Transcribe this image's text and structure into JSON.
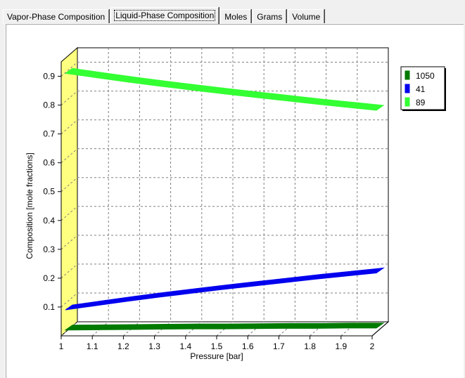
{
  "tabs": [
    {
      "label": "Vapor-Phase Composition",
      "active": false
    },
    {
      "label": "Liquid-Phase Composition",
      "active": true
    },
    {
      "label": "Moles",
      "active": false
    },
    {
      "label": "Grams",
      "active": false
    },
    {
      "label": "Volume",
      "active": false
    }
  ],
  "chart_data": {
    "type": "line",
    "style": "3d-ribbon",
    "title": "",
    "xlabel": "Pressure [bar]",
    "ylabel": "Composition [mole fractions]",
    "xlim": [
      1,
      2
    ],
    "ylim": [
      0,
      0.95
    ],
    "x_ticks": [
      "1",
      "1.1",
      "1.2",
      "1.3",
      "1.4",
      "1.5",
      "1.6",
      "1.7",
      "1.8",
      "1.9",
      "2"
    ],
    "y_ticks": [
      "0.1",
      "0.2",
      "0.3",
      "0.4",
      "0.5",
      "0.6",
      "0.7",
      "0.8",
      "0.9"
    ],
    "grid": true,
    "legend_position": "right",
    "x": [
      1,
      1.1,
      1.2,
      1.3,
      1.4,
      1.5,
      1.6,
      1.7,
      1.8,
      1.9,
      2
    ],
    "series": [
      {
        "name": "1050",
        "color": "#007a00",
        "values": [
          0.02,
          0.021,
          0.022,
          0.023,
          0.024,
          0.024,
          0.025,
          0.026,
          0.026,
          0.027,
          0.027
        ]
      },
      {
        "name": "41",
        "color": "#0000ee",
        "values": [
          0.09,
          0.105,
          0.12,
          0.134,
          0.147,
          0.16,
          0.172,
          0.184,
          0.196,
          0.207,
          0.218
        ]
      },
      {
        "name": "89",
        "color": "#33ff33",
        "values": [
          0.91,
          0.895,
          0.88,
          0.866,
          0.853,
          0.84,
          0.828,
          0.816,
          0.804,
          0.793,
          0.782
        ]
      }
    ]
  }
}
